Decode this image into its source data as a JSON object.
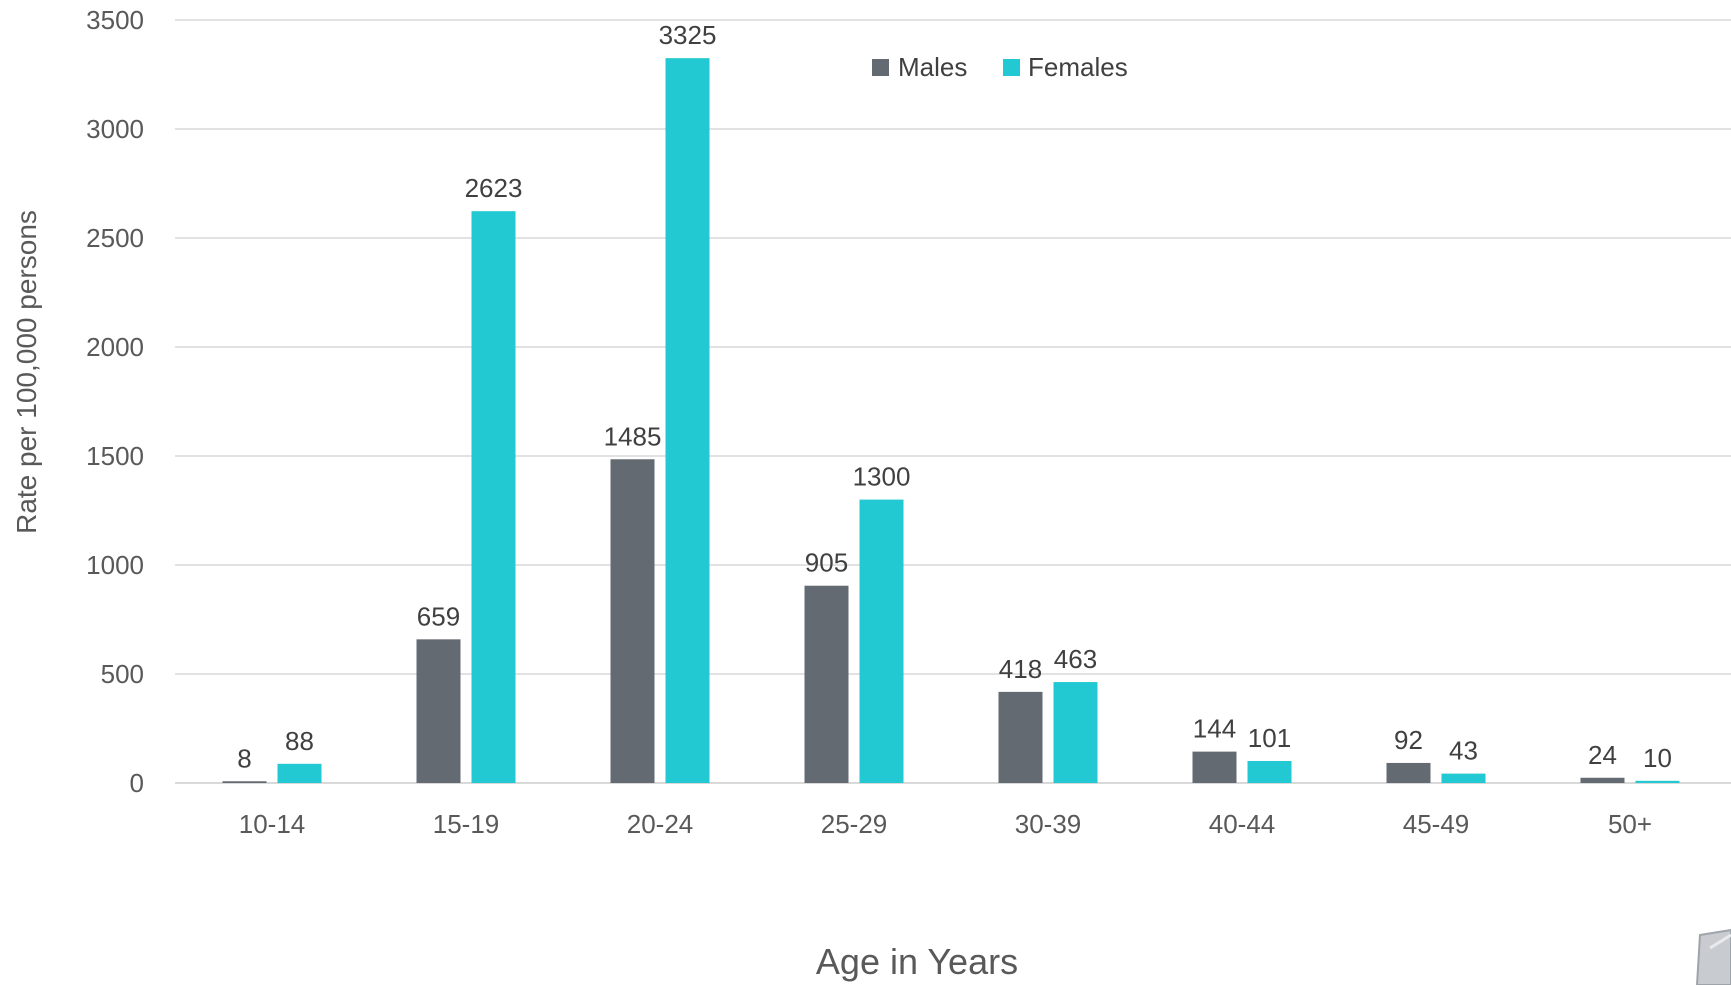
{
  "chart_data": {
    "type": "bar",
    "categories": [
      "10-14",
      "15-19",
      "20-24",
      "25-29",
      "30-39",
      "40-44",
      "45-49",
      "50+"
    ],
    "series": [
      {
        "name": "Males",
        "color": "#636a71",
        "values": [
          8,
          659,
          1485,
          905,
          418,
          144,
          92,
          24
        ]
      },
      {
        "name": "Females",
        "color": "#22c9d2",
        "values": [
          88,
          2623,
          3325,
          1300,
          463,
          101,
          43,
          10
        ]
      }
    ],
    "title": "",
    "xlabel": "Age in Years",
    "ylabel": "Rate per 100,000 persons",
    "ylim": [
      0,
      3500
    ],
    "yticks": [
      0,
      500,
      1000,
      1500,
      2000,
      2500,
      3000,
      3500
    ],
    "grid": true,
    "legend": "top-center"
  },
  "corner_icon": "speaker-icon"
}
